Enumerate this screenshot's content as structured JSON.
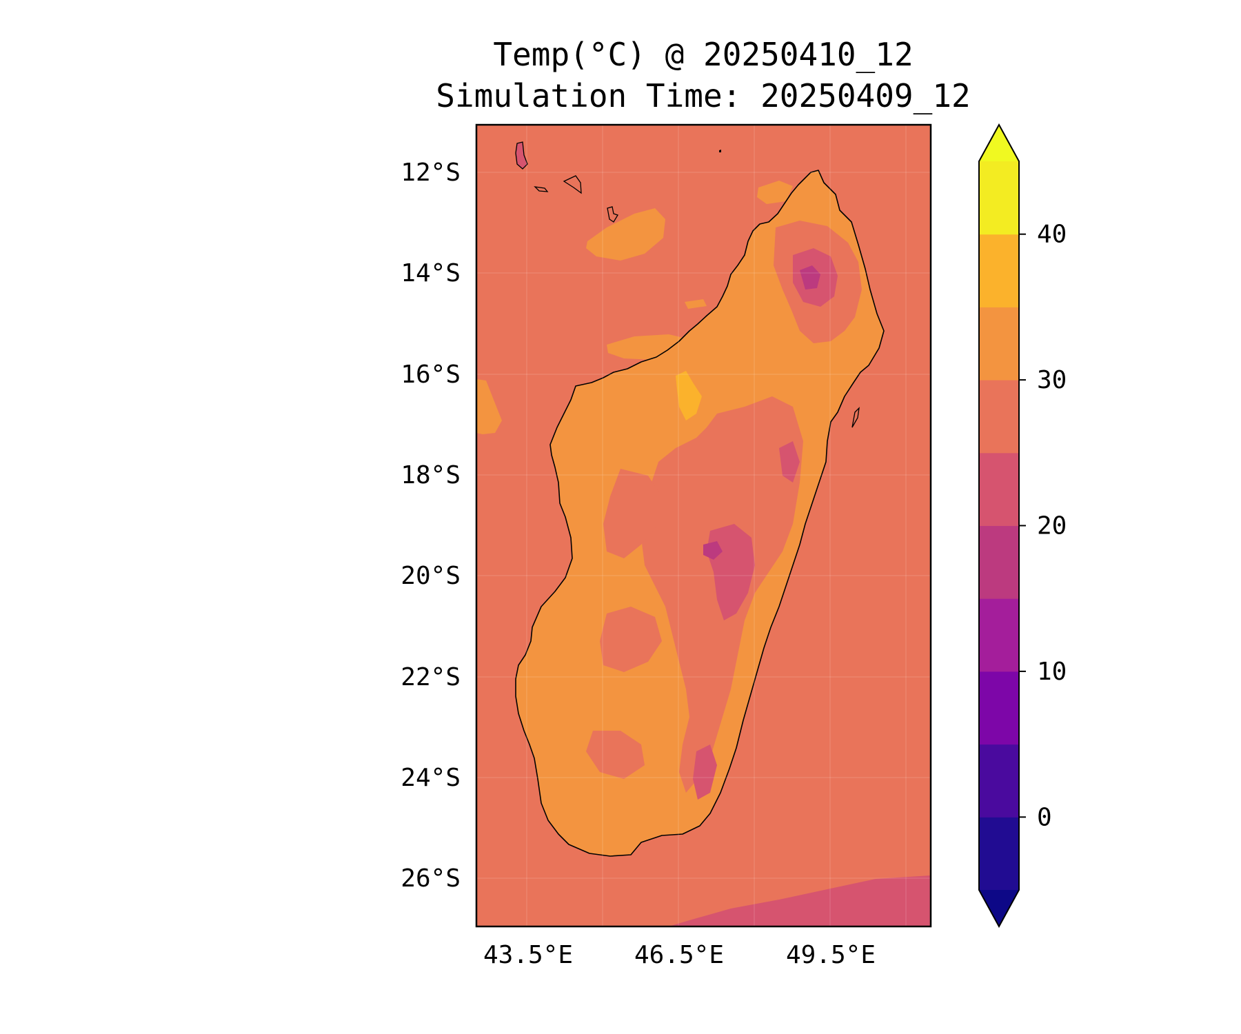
{
  "title": {
    "line1": "Temp(°C) @ 20250410_12",
    "line2": "Simulation Time: 20250409_12"
  },
  "map": {
    "lat_labels": [
      "12°S",
      "14°S",
      "16°S",
      "18°S",
      "20°S",
      "22°S",
      "24°S",
      "26°S"
    ],
    "lon_labels": [
      "43.5°E",
      "46.5°E",
      "49.5°E"
    ],
    "lat_range": [
      -27,
      -11.1
    ],
    "lon_range": [
      42.5,
      51.5
    ],
    "colors": {
      "ocean": "#e9745a",
      "warm_land": "#f39440",
      "hot": "#fbb22c",
      "cool": "#d6546f",
      "cold": "#bc3a7f",
      "coast": "#000000"
    }
  },
  "colorbar": {
    "tick_labels": [
      "40",
      "30",
      "20",
      "10",
      "0"
    ],
    "tick_values": [
      40,
      30,
      20,
      10,
      0
    ],
    "levels": [
      -5,
      0,
      5,
      10,
      15,
      20,
      25,
      30,
      35,
      40,
      45
    ],
    "band_colors": [
      "#210c92",
      "#4a0a9e",
      "#7d06a8",
      "#a41e9b",
      "#bc3a7f",
      "#d6546f",
      "#e9745a",
      "#f39440",
      "#fbb22c",
      "#f3ec22"
    ],
    "under_color": "#0d0887",
    "over_color": "#f0f921"
  }
}
